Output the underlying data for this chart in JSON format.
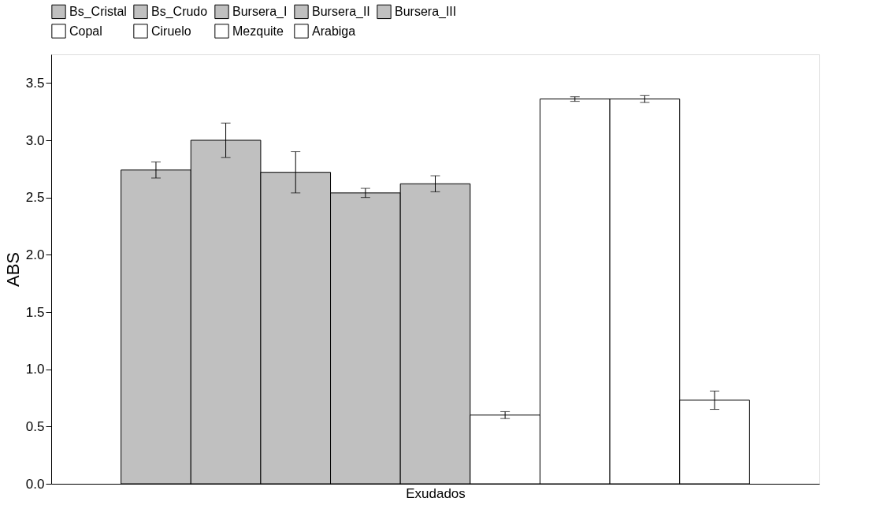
{
  "chart_data": {
    "type": "bar",
    "xlabel": "Exudados",
    "ylabel": "ABS",
    "categories": [
      null
    ],
    "series": [
      {
        "name": "Bs_Cristal",
        "color": "#c0c0c0",
        "values": [
          2.74
        ],
        "errors": [
          0.07
        ]
      },
      {
        "name": "Bs_Crudo",
        "color": "#c0c0c0",
        "values": [
          3.0
        ],
        "errors": [
          0.15
        ]
      },
      {
        "name": "Bursera_I",
        "color": "#c0c0c0",
        "values": [
          2.72
        ],
        "errors": [
          0.18
        ]
      },
      {
        "name": "Bursera_II",
        "color": "#c0c0c0",
        "values": [
          2.54
        ],
        "errors": [
          0.04
        ]
      },
      {
        "name": "Bursera_III",
        "color": "#c0c0c0",
        "values": [
          2.62
        ],
        "errors": [
          0.07
        ]
      },
      {
        "name": "Copal",
        "color": "#ffffff",
        "values": [
          0.6
        ],
        "errors": [
          0.03
        ]
      },
      {
        "name": "Ciruelo",
        "color": "#ffffff",
        "values": [
          3.36
        ],
        "errors": [
          0.02
        ]
      },
      {
        "name": "Mezquite",
        "color": "#ffffff",
        "values": [
          3.36
        ],
        "errors": [
          0.03
        ]
      },
      {
        "name": "Arabiga",
        "color": "#ffffff",
        "values": [
          0.73
        ],
        "errors": [
          0.08
        ]
      }
    ],
    "ylim": [
      0,
      3.75
    ],
    "yticks": [
      {
        "value": 0,
        "label": "0.0"
      },
      0.5,
      {
        "value": 1,
        "label": "1.0"
      },
      1.5,
      {
        "value": 2,
        "label": "2.0"
      },
      2.5,
      {
        "value": 3,
        "label": "3.0"
      },
      3.5
    ],
    "grid": false,
    "legend": "top",
    "tick_labels": "y"
  }
}
